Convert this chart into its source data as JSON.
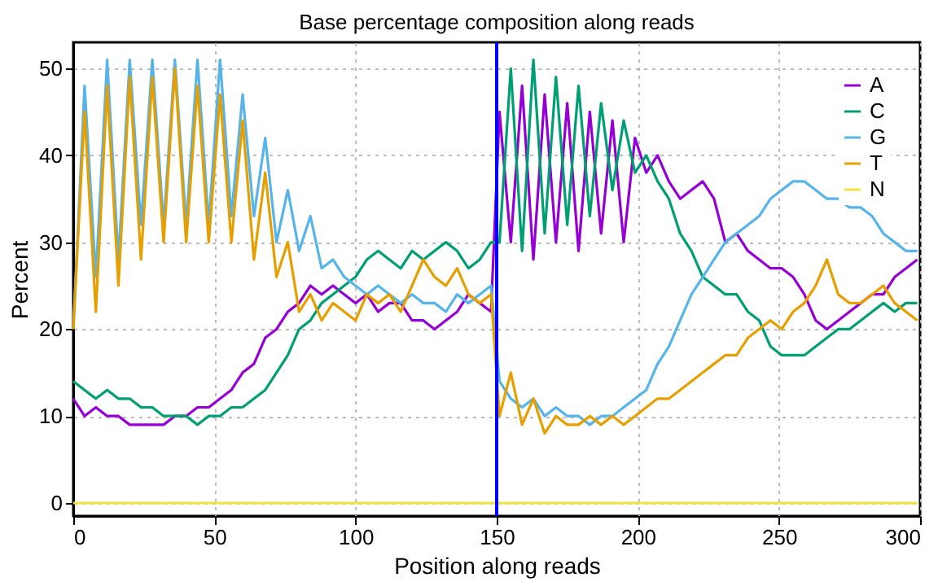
{
  "chart_data": {
    "type": "line",
    "title": "Base percentage composition along reads",
    "xlabel": "Position along reads",
    "ylabel": "Percent",
    "x": [
      0,
      4,
      8,
      12,
      16,
      20,
      24,
      28,
      32,
      36,
      40,
      44,
      48,
      52,
      56,
      60,
      64,
      68,
      72,
      76,
      80,
      84,
      88,
      92,
      96,
      100,
      104,
      108,
      112,
      116,
      120,
      124,
      128,
      132,
      136,
      140,
      144,
      148,
      151,
      155,
      159,
      163,
      167,
      171,
      175,
      179,
      183,
      187,
      191,
      195,
      199,
      203,
      207,
      211,
      215,
      219,
      223,
      227,
      231,
      235,
      239,
      243,
      247,
      251,
      255,
      259,
      263,
      267,
      271,
      275,
      279,
      283,
      287,
      291,
      295,
      299
    ],
    "series": [
      {
        "name": "A",
        "color": "#9400d3",
        "values": [
          12,
          10,
          11,
          10,
          10,
          9,
          9,
          9,
          9,
          10,
          10,
          11,
          11,
          12,
          13,
          15,
          16,
          19,
          20,
          22,
          23,
          25,
          24,
          25,
          24,
          23,
          24,
          22,
          23,
          23,
          21,
          21,
          20,
          21,
          22,
          24,
          23,
          22,
          45,
          30,
          48,
          28,
          47,
          30,
          46,
          29,
          45,
          31,
          44,
          30,
          42,
          38,
          40,
          37,
          35,
          36,
          37,
          35,
          30,
          31,
          29,
          28,
          27,
          27,
          26,
          24,
          21,
          20,
          21,
          22,
          23,
          24,
          24,
          26,
          27,
          28
        ]
      },
      {
        "name": "C",
        "color": "#009e73",
        "values": [
          14,
          13,
          12,
          13,
          12,
          12,
          11,
          11,
          10,
          10,
          10,
          9,
          10,
          10,
          11,
          11,
          12,
          13,
          15,
          17,
          20,
          21,
          23,
          24,
          25,
          26,
          28,
          29,
          28,
          27,
          29,
          28,
          29,
          30,
          29,
          27,
          28,
          30,
          30,
          50,
          29,
          51,
          31,
          49,
          32,
          48,
          33,
          46,
          36,
          44,
          38,
          40,
          37,
          35,
          31,
          29,
          26,
          25,
          24,
          24,
          22,
          21,
          18,
          17,
          17,
          17,
          18,
          19,
          20,
          20,
          21,
          22,
          23,
          22,
          23,
          23
        ]
      },
      {
        "name": "G",
        "color": "#56b4e9",
        "values": [
          20,
          48,
          26,
          51,
          28,
          51,
          32,
          51,
          32,
          51,
          32,
          51,
          32,
          51,
          33,
          47,
          33,
          42,
          30,
          36,
          29,
          33,
          27,
          28,
          26,
          25,
          24,
          25,
          24,
          23,
          24,
          23,
          23,
          22,
          24,
          23,
          24,
          25,
          14,
          12,
          11,
          12,
          10,
          11,
          10,
          10,
          9,
          10,
          10,
          11,
          12,
          13,
          16,
          18,
          21,
          24,
          26,
          28,
          30,
          31,
          32,
          33,
          35,
          36,
          37,
          37,
          36,
          35,
          35,
          34,
          34,
          33,
          31,
          30,
          29,
          29
        ]
      },
      {
        "name": "T",
        "color": "#e69f00",
        "values": [
          20,
          45,
          22,
          48,
          25,
          49,
          28,
          49,
          30,
          50,
          30,
          48,
          30,
          47,
          30,
          44,
          28,
          38,
          26,
          30,
          22,
          24,
          21,
          23,
          22,
          21,
          24,
          23,
          24,
          22,
          25,
          28,
          26,
          25,
          27,
          24,
          23,
          24,
          10,
          15,
          9,
          12,
          8,
          10,
          9,
          9,
          10,
          9,
          10,
          9,
          10,
          11,
          12,
          12,
          13,
          14,
          15,
          16,
          17,
          17,
          19,
          20,
          21,
          20,
          22,
          23,
          25,
          28,
          24,
          23,
          23,
          24,
          25,
          23,
          22,
          21
        ]
      },
      {
        "name": "N",
        "color": "#f0e442",
        "values": [
          0,
          0,
          0,
          0,
          0,
          0,
          0,
          0,
          0,
          0,
          0,
          0,
          0,
          0,
          0,
          0,
          0,
          0,
          0,
          0,
          0,
          0,
          0,
          0,
          0,
          0,
          0,
          0,
          0,
          0,
          0,
          0,
          0,
          0,
          0,
          0,
          0,
          0,
          0,
          0,
          0,
          0,
          0,
          0,
          0,
          0,
          0,
          0,
          0,
          0,
          0,
          0,
          0,
          0,
          0,
          0,
          0,
          0,
          0,
          0,
          0,
          0,
          0,
          0,
          0,
          0,
          0,
          0,
          0,
          0,
          0,
          0,
          0,
          0,
          0,
          0
        ]
      }
    ],
    "ref_lines": [
      {
        "axis": "x",
        "value": 150,
        "color": "#0000ff"
      }
    ],
    "xlim": [
      0,
      300
    ],
    "xticks": [
      0,
      50,
      100,
      150,
      200,
      250,
      300
    ],
    "ylim": [
      -1.5,
      53
    ],
    "yticks": [
      0,
      10,
      20,
      30,
      40,
      50
    ],
    "grid": true,
    "legend": "top right",
    "marker": "none",
    "line_style": "solid"
  }
}
